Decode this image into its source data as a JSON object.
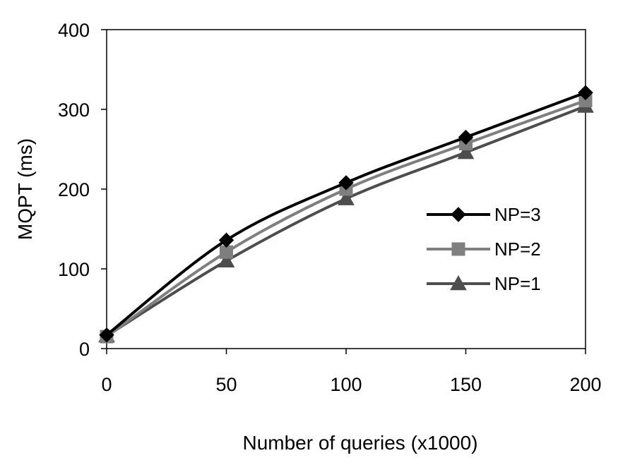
{
  "chart_data": {
    "type": "line",
    "title": "",
    "xlabel": "Number of queries (x1000)",
    "ylabel": "MQPT (ms)",
    "xlim": [
      0,
      200
    ],
    "ylim": [
      0,
      400
    ],
    "x_ticks": [
      "0",
      "50",
      "100",
      "150",
      "200"
    ],
    "y_ticks": [
      "0",
      "100",
      "200",
      "300",
      "400"
    ],
    "x": [
      0,
      50,
      100,
      150,
      200
    ],
    "grid": false,
    "legend_position": "right",
    "series": [
      {
        "name": "NP=3",
        "values": [
          17,
          136,
          208,
          265,
          321
        ],
        "color": "#000000",
        "marker": "diamond"
      },
      {
        "name": "NP=2",
        "values": [
          15,
          121,
          200,
          257,
          311
        ],
        "color": "#7f7f7f",
        "marker": "square"
      },
      {
        "name": "NP=1",
        "values": [
          16,
          110,
          188,
          246,
          304
        ],
        "color": "#4d4d4d",
        "marker": "triangle"
      }
    ]
  }
}
